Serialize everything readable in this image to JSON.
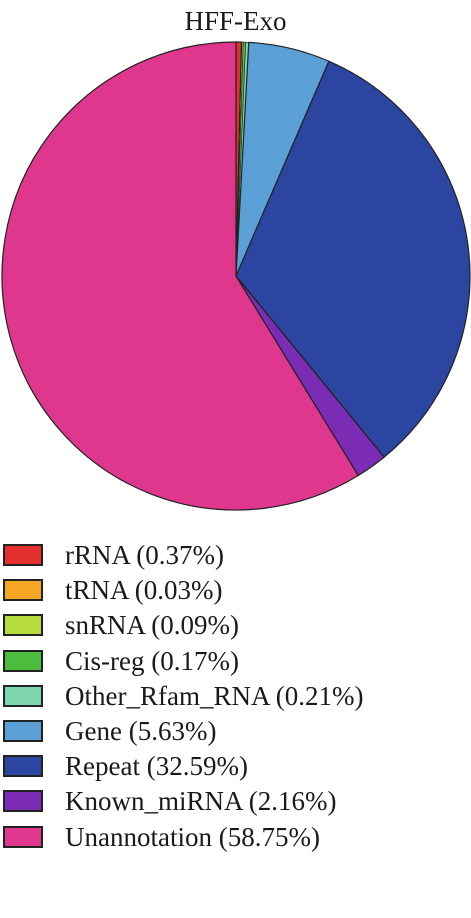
{
  "chart_data": {
    "type": "pie",
    "title": "HFF-Exo",
    "slices": [
      {
        "label": "rRNA (0.37%)",
        "value": 0.37,
        "color": "#e3302f"
      },
      {
        "label": "tRNA (0.03%)",
        "value": 0.03,
        "color": "#f5a623"
      },
      {
        "label": "snRNA (0.09%)",
        "value": 0.09,
        "color": "#b5dc3c"
      },
      {
        "label": "Cis-reg (0.17%)",
        "value": 0.17,
        "color": "#4cbc3f"
      },
      {
        "label": "Other_Rfam_RNA (0.21%)",
        "value": 0.21,
        "color": "#7fd6ad"
      },
      {
        "label": "Gene (5.63%)",
        "value": 5.63,
        "color": "#5aa0d6"
      },
      {
        "label": "Repeat (32.59%)",
        "value": 32.59,
        "color": "#2c45a0"
      },
      {
        "label": "Known_miRNA (2.16%)",
        "value": 2.16,
        "color": "#7a2cb5"
      },
      {
        "label": "Unannotation (58.75%)",
        "value": 58.75,
        "color": "#e0378e"
      }
    ],
    "legend": "bottom-left"
  }
}
